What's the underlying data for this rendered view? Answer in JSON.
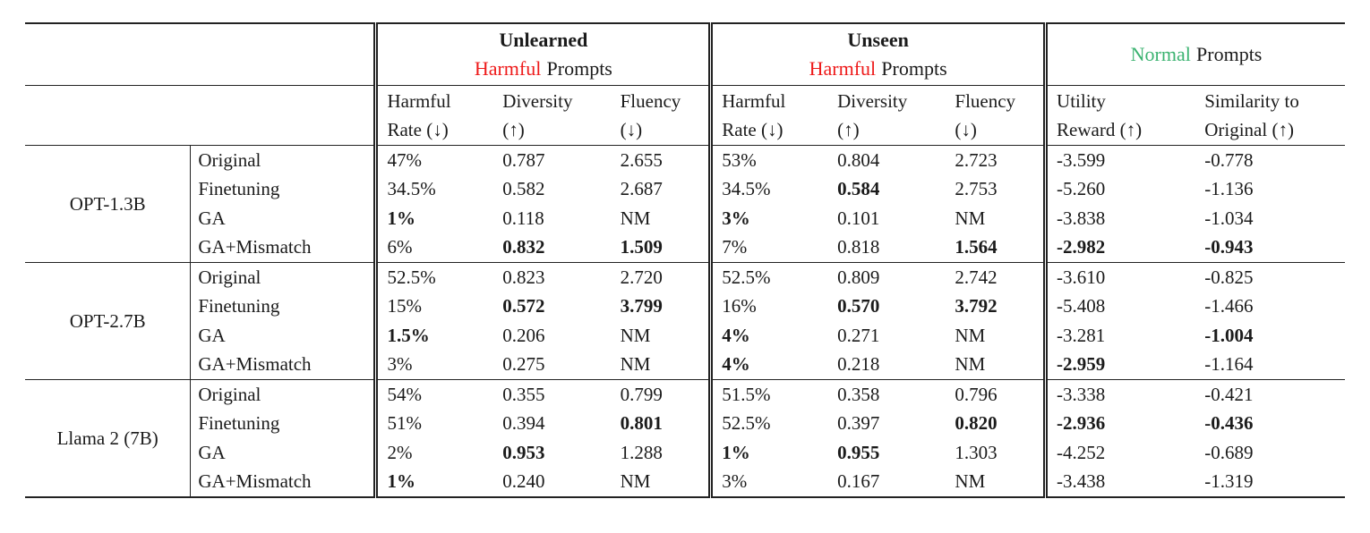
{
  "colors": {
    "harmful_red": "#ee1b1b",
    "normal_green": "#3cb371"
  },
  "header": {
    "groups": [
      {
        "title": "Unlearned",
        "accent_word": "Harmful",
        "rest": "Prompts",
        "accent_color": "#ee1b1b"
      },
      {
        "title": "Unseen",
        "accent_word": "Harmful",
        "rest": "Prompts",
        "accent_color": "#ee1b1b"
      },
      {
        "title": "",
        "accent_word": "Normal",
        "rest": "Prompts",
        "accent_color": "#3cb371"
      }
    ],
    "subcols": [
      {
        "line1": "Harmful",
        "line2": "Rate (↓)"
      },
      {
        "line1": "Diversity",
        "line2": "(↑)"
      },
      {
        "line1": "Fluency",
        "line2": "(↓)"
      },
      {
        "line1": "Harmful",
        "line2": "Rate (↓)"
      },
      {
        "line1": "Diversity",
        "line2": "(↑)"
      },
      {
        "line1": "Fluency",
        "line2": "(↓)"
      },
      {
        "line1": "Utility",
        "line2": "Reward (↑)"
      },
      {
        "line1": "Similarity to",
        "line2": "Original (↑)"
      }
    ]
  },
  "body": {
    "row_groups": [
      {
        "model": "OPT-1.3B",
        "rows": [
          {
            "method": "Original",
            "cells": [
              "47%",
              "0.787",
              "2.655",
              "53%",
              "0.804",
              "2.723",
              "-3.599",
              "-0.778"
            ],
            "bold": [
              0,
              0,
              0,
              0,
              0,
              0,
              0,
              0
            ]
          },
          {
            "method": "Finetuning",
            "cells": [
              "34.5%",
              "0.582",
              "2.687",
              "34.5%",
              "0.584",
              "2.753",
              "-5.260",
              "-1.136"
            ],
            "bold": [
              0,
              0,
              0,
              0,
              1,
              0,
              0,
              0
            ]
          },
          {
            "method": "GA",
            "cells": [
              "1%",
              "0.118",
              "NM",
              "3%",
              "0.101",
              "NM",
              "-3.838",
              "-1.034"
            ],
            "bold": [
              1,
              0,
              0,
              1,
              0,
              0,
              0,
              0
            ]
          },
          {
            "method": "GA+Mismatch",
            "cells": [
              "6%",
              "0.832",
              "1.509",
              "7%",
              "0.818",
              "1.564",
              "-2.982",
              "-0.943"
            ],
            "bold": [
              0,
              1,
              1,
              0,
              0,
              1,
              1,
              1
            ]
          }
        ]
      },
      {
        "model": "OPT-2.7B",
        "rows": [
          {
            "method": "Original",
            "cells": [
              "52.5%",
              "0.823",
              "2.720",
              "52.5%",
              "0.809",
              "2.742",
              "-3.610",
              "-0.825"
            ],
            "bold": [
              0,
              0,
              0,
              0,
              0,
              0,
              0,
              0
            ]
          },
          {
            "method": "Finetuning",
            "cells": [
              "15%",
              "0.572",
              "3.799",
              "16%",
              "0.570",
              "3.792",
              "-5.408",
              "-1.466"
            ],
            "bold": [
              0,
              1,
              1,
              0,
              1,
              1,
              0,
              0
            ]
          },
          {
            "method": "GA",
            "cells": [
              "1.5%",
              "0.206",
              "NM",
              "4%",
              "0.271",
              "NM",
              "-3.281",
              "-1.004"
            ],
            "bold": [
              1,
              0,
              0,
              1,
              0,
              0,
              0,
              1
            ]
          },
          {
            "method": "GA+Mismatch",
            "cells": [
              "3%",
              "0.275",
              "NM",
              "4%",
              "0.218",
              "NM",
              "-2.959",
              "-1.164"
            ],
            "bold": [
              0,
              0,
              0,
              1,
              0,
              0,
              1,
              0
            ]
          }
        ]
      },
      {
        "model": "Llama 2 (7B)",
        "rows": [
          {
            "method": "Original",
            "cells": [
              "54%",
              "0.355",
              "0.799",
              "51.5%",
              "0.358",
              "0.796",
              "-3.338",
              "-0.421"
            ],
            "bold": [
              0,
              0,
              0,
              0,
              0,
              0,
              0,
              0
            ]
          },
          {
            "method": "Finetuning",
            "cells": [
              "51%",
              "0.394",
              "0.801",
              "52.5%",
              "0.397",
              "0.820",
              "-2.936",
              "-0.436"
            ],
            "bold": [
              0,
              0,
              1,
              0,
              0,
              1,
              1,
              1
            ]
          },
          {
            "method": "GA",
            "cells": [
              "2%",
              "0.953",
              "1.288",
              "1%",
              "0.955",
              "1.303",
              "-4.252",
              "-0.689"
            ],
            "bold": [
              0,
              1,
              0,
              1,
              1,
              0,
              0,
              0
            ]
          },
          {
            "method": "GA+Mismatch",
            "cells": [
              "1%",
              "0.240",
              "NM",
              "3%",
              "0.167",
              "NM",
              "-3.438",
              "-1.319"
            ],
            "bold": [
              1,
              0,
              0,
              0,
              0,
              0,
              0,
              0
            ]
          }
        ]
      }
    ]
  }
}
